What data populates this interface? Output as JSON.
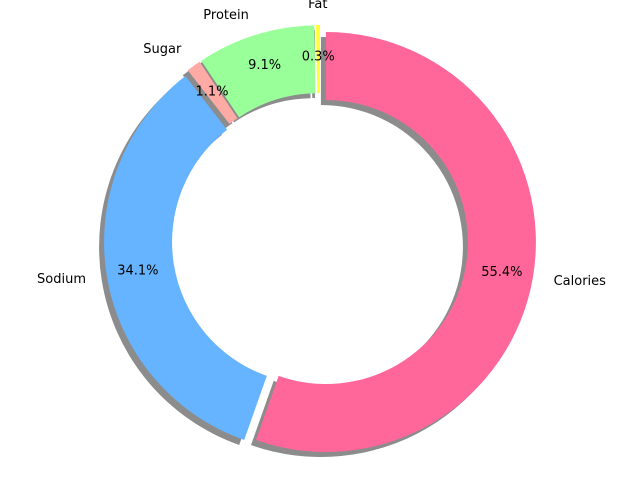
{
  "chart_data": {
    "type": "pie",
    "style": "donut",
    "categories": [
      "Calories",
      "Sodium",
      "Sugar",
      "Protein",
      "Fat"
    ],
    "values": [
      55.4,
      34.1,
      1.1,
      9.1,
      0.3
    ],
    "value_labels": [
      "55.4%",
      "34.1%",
      "1.1%",
      "9.1%",
      "0.3%"
    ],
    "colors": [
      "#ff6699",
      "#66b3ff",
      "#ffaaa5",
      "#99ff99",
      "#ffff33"
    ],
    "exploded": true,
    "shadow": true,
    "legend": "none",
    "grid": false
  }
}
